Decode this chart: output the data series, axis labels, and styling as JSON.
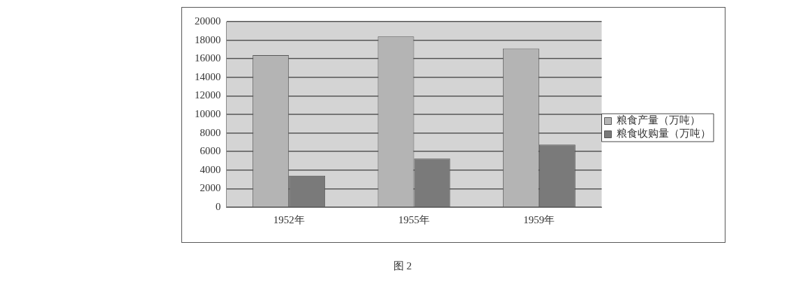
{
  "chart_data": {
    "type": "bar",
    "categories": [
      "1952年",
      "1955年",
      "1959年"
    ],
    "series": [
      {
        "name": "粮食产量（万吨）",
        "color": "#b4b4b4",
        "values": [
          16400,
          18400,
          17100
        ]
      },
      {
        "name": "粮食收购量（万吨）",
        "color": "#7a7a7a",
        "values": [
          3400,
          5250,
          6750
        ]
      }
    ],
    "ylim": [
      0,
      20000
    ],
    "yticks": [
      0,
      2000,
      4000,
      6000,
      8000,
      10000,
      12000,
      14000,
      16000,
      18000,
      20000
    ],
    "grid": "y",
    "legend": "right",
    "annotations": [
      "图 2"
    ]
  }
}
